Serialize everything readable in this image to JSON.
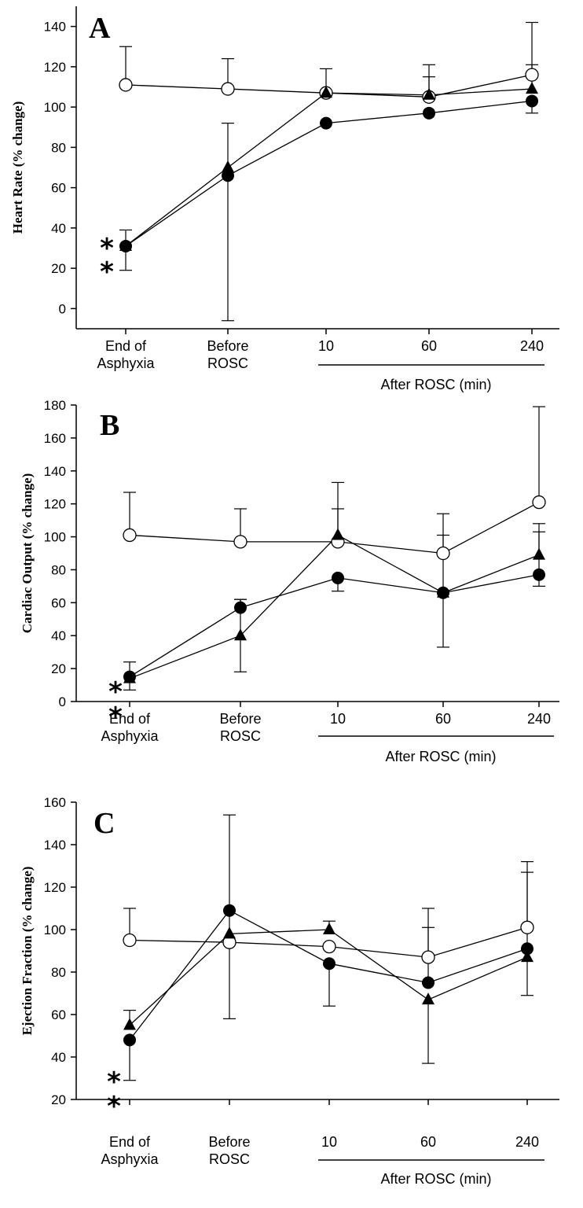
{
  "chart_data": [
    {
      "type": "line",
      "panel": "A",
      "ylabel": "Heart Rate (% change)",
      "ylim": [
        -10,
        150
      ],
      "yticks": [
        0,
        20,
        40,
        60,
        80,
        100,
        120,
        140
      ],
      "categories": [
        "End of\nAsphyxia",
        "Before\nROSC",
        "10",
        "60",
        "240"
      ],
      "group_label": "After ROSC (min)",
      "annotations": [
        "*",
        "*"
      ],
      "series": [
        {
          "marker": "open-circle",
          "values": [
            111,
            109,
            107,
            105,
            116
          ],
          "err_up": [
            19,
            15,
            12,
            16,
            26
          ],
          "err_down": [
            0,
            0,
            0,
            0,
            0
          ]
        },
        {
          "marker": "triangle",
          "values": [
            31,
            70,
            107,
            106,
            109
          ],
          "err_up": [
            8,
            22,
            0,
            9,
            12
          ],
          "err_down": [
            0,
            0,
            0,
            0,
            0
          ]
        },
        {
          "marker": "filled-circle",
          "values": [
            31,
            66,
            92,
            97,
            103
          ],
          "err_up": [
            0,
            0,
            0,
            0,
            0
          ],
          "err_down": [
            12,
            72,
            0,
            0,
            6
          ]
        }
      ]
    },
    {
      "type": "line",
      "panel": "B",
      "ylabel": "Cardiac Output (% change)",
      "ylim": [
        0,
        180
      ],
      "yticks": [
        0,
        20,
        40,
        60,
        80,
        100,
        120,
        140,
        160,
        180
      ],
      "categories": [
        "End of\nAsphyxia",
        "Before\nROSC",
        "10",
        "60",
        "240"
      ],
      "group_label": "After ROSC (min)",
      "annotations": [
        "*",
        "*"
      ],
      "series": [
        {
          "marker": "open-circle",
          "values": [
            101,
            97,
            97,
            90,
            121
          ],
          "err_up": [
            26,
            20,
            36,
            24,
            58
          ],
          "err_down": [
            0,
            0,
            0,
            0,
            0
          ]
        },
        {
          "marker": "triangle",
          "values": [
            14,
            40,
            101,
            66,
            89
          ],
          "err_up": [
            10,
            22,
            16,
            35,
            19
          ],
          "err_down": [
            0,
            22,
            0,
            33,
            0
          ]
        },
        {
          "marker": "filled-circle",
          "values": [
            15,
            57,
            75,
            66,
            77
          ],
          "err_up": [
            0,
            5,
            0,
            0,
            26
          ],
          "err_down": [
            8,
            0,
            8,
            0,
            7
          ]
        }
      ]
    },
    {
      "type": "line",
      "panel": "C",
      "ylabel": "Ejection Fraction (% change)",
      "ylim": [
        20,
        160
      ],
      "yticks": [
        20,
        40,
        60,
        80,
        100,
        120,
        140,
        160
      ],
      "categories": [
        "End of\nAsphyxia",
        "Before\nROSC",
        "10",
        "60",
        "240"
      ],
      "group_label": "After ROSC (min)",
      "annotations": [
        "*",
        "*"
      ],
      "series": [
        {
          "marker": "open-circle",
          "values": [
            95,
            94,
            92,
            87,
            101
          ],
          "err_up": [
            15,
            60,
            0,
            23,
            31
          ],
          "err_down": [
            0,
            36,
            0,
            0,
            0
          ]
        },
        {
          "marker": "triangle",
          "values": [
            55,
            98,
            100,
            67,
            87
          ],
          "err_up": [
            7,
            0,
            4,
            0,
            40
          ],
          "err_down": [
            0,
            0,
            0,
            30,
            18
          ]
        },
        {
          "marker": "filled-circle",
          "values": [
            48,
            109,
            84,
            75,
            91
          ],
          "err_up": [
            0,
            0,
            0,
            26,
            0
          ],
          "err_down": [
            19,
            0,
            20,
            0,
            0
          ]
        }
      ]
    }
  ]
}
